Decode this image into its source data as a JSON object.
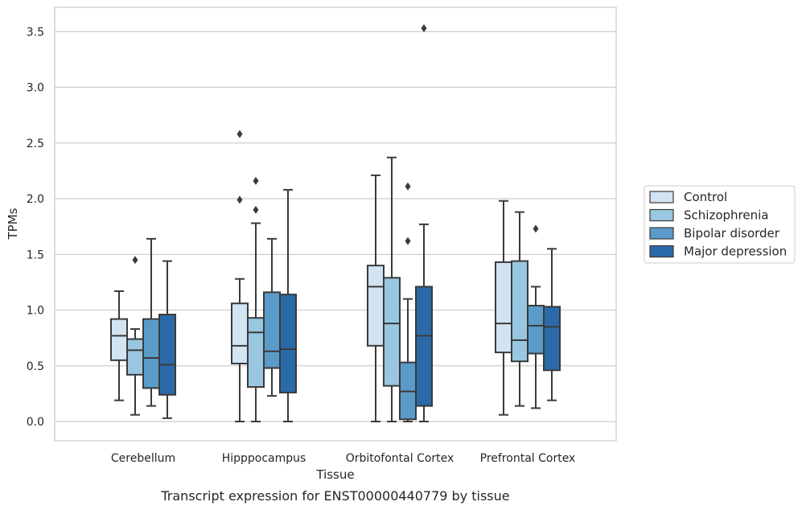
{
  "chart_data": {
    "type": "box",
    "caption": "Transcript expression for ENST00000440779 by tissue",
    "xlabel": "Tissue",
    "ylabel": "TPMs",
    "ylim": [
      -0.17,
      3.72
    ],
    "yticks": [
      0.0,
      0.5,
      1.0,
      1.5,
      2.0,
      2.5,
      3.0,
      3.5
    ],
    "ytick_labels": [
      "0.0",
      "0.5",
      "1.0",
      "1.5",
      "2.0",
      "2.5",
      "3.0",
      "3.5"
    ],
    "grid": "horizontal",
    "legend_position": "right-outside",
    "categories": [
      "Cerebellum",
      "Hipppocampus",
      "Orbitofontal Cortex",
      "Prefrontal Cortex"
    ],
    "series": [
      {
        "name": "Control",
        "color": "#d2e3f2",
        "boxes": [
          {
            "whisker_low": 0.19,
            "q1": 0.55,
            "median": 0.77,
            "q3": 0.92,
            "whisker_high": 1.17,
            "outliers": []
          },
          {
            "whisker_low": 0.0,
            "q1": 0.52,
            "median": 0.68,
            "q3": 1.06,
            "whisker_high": 1.28,
            "outliers": [
              1.99,
              2.58
            ]
          },
          {
            "whisker_low": 0.0,
            "q1": 0.68,
            "median": 1.21,
            "q3": 1.4,
            "whisker_high": 2.21,
            "outliers": []
          },
          {
            "whisker_low": 0.06,
            "q1": 0.62,
            "median": 0.88,
            "q3": 1.43,
            "whisker_high": 1.98,
            "outliers": []
          }
        ]
      },
      {
        "name": "Schizophrenia",
        "color": "#9ac7e0",
        "boxes": [
          {
            "whisker_low": 0.06,
            "q1": 0.42,
            "median": 0.64,
            "q3": 0.74,
            "whisker_high": 0.83,
            "outliers": [
              1.45
            ]
          },
          {
            "whisker_low": 0.0,
            "q1": 0.31,
            "median": 0.8,
            "q3": 0.93,
            "whisker_high": 1.78,
            "outliers": [
              1.9,
              2.16
            ]
          },
          {
            "whisker_low": 0.0,
            "q1": 0.32,
            "median": 0.88,
            "q3": 1.29,
            "whisker_high": 2.37,
            "outliers": []
          },
          {
            "whisker_low": 0.14,
            "q1": 0.54,
            "median": 0.73,
            "q3": 1.44,
            "whisker_high": 1.88,
            "outliers": []
          }
        ]
      },
      {
        "name": "Bipolar disorder",
        "color": "#5b9bc9",
        "boxes": [
          {
            "whisker_low": 0.14,
            "q1": 0.3,
            "median": 0.57,
            "q3": 0.92,
            "whisker_high": 1.64,
            "outliers": []
          },
          {
            "whisker_low": 0.23,
            "q1": 0.48,
            "median": 0.63,
            "q3": 1.16,
            "whisker_high": 1.64,
            "outliers": []
          },
          {
            "whisker_low": 0.0,
            "q1": 0.02,
            "median": 0.27,
            "q3": 0.53,
            "whisker_high": 1.1,
            "outliers": [
              1.62,
              2.11
            ]
          },
          {
            "whisker_low": 0.12,
            "q1": 0.61,
            "median": 0.86,
            "q3": 1.04,
            "whisker_high": 1.21,
            "outliers": [
              1.73
            ]
          }
        ]
      },
      {
        "name": "Major depression",
        "color": "#2b6aa8",
        "boxes": [
          {
            "whisker_low": 0.03,
            "q1": 0.24,
            "median": 0.51,
            "q3": 0.96,
            "whisker_high": 1.44,
            "outliers": []
          },
          {
            "whisker_low": 0.0,
            "q1": 0.26,
            "median": 0.65,
            "q3": 1.14,
            "whisker_high": 2.08,
            "outliers": []
          },
          {
            "whisker_low": 0.0,
            "q1": 0.14,
            "median": 0.77,
            "q3": 1.21,
            "whisker_high": 1.77,
            "outliers": [
              3.53
            ]
          },
          {
            "whisker_low": 0.19,
            "q1": 0.46,
            "median": 0.85,
            "q3": 1.03,
            "whisker_high": 1.55,
            "outliers": []
          }
        ]
      }
    ]
  }
}
